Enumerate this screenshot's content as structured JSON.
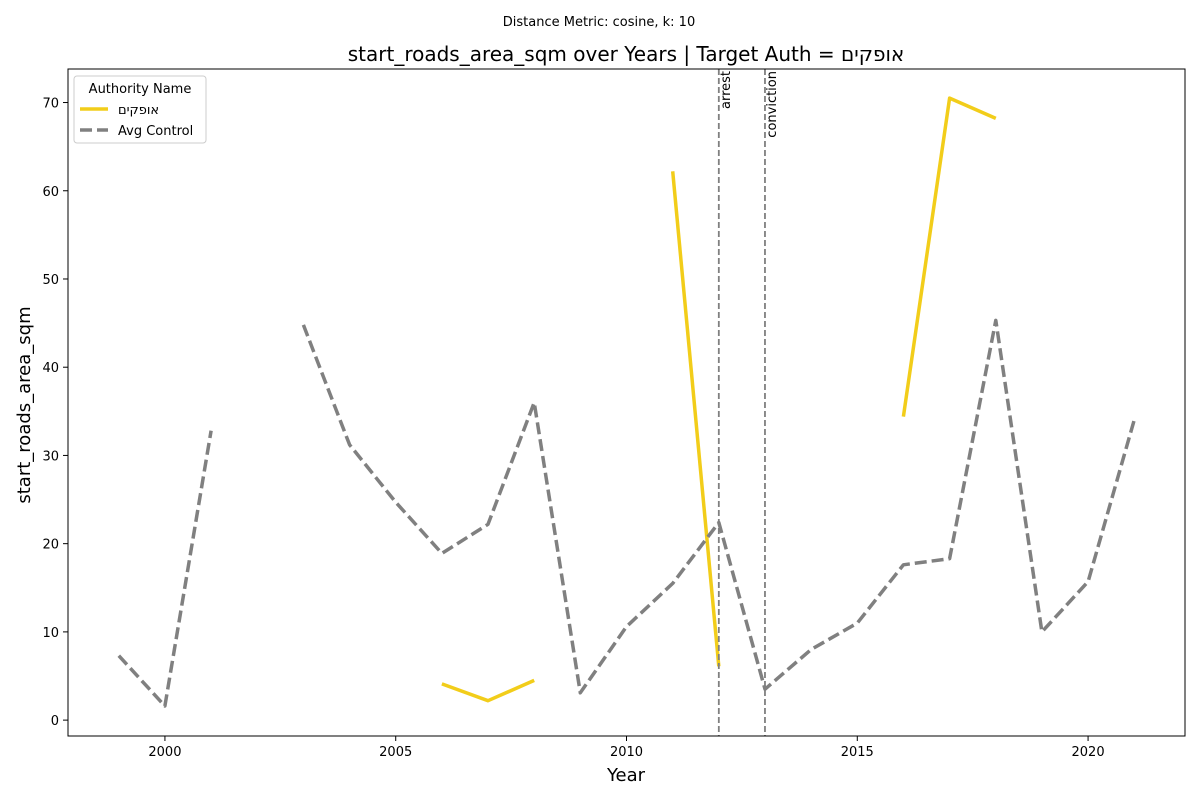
{
  "chart_data": {
    "type": "line",
    "suptitle": "Distance Metric: cosine, k: 10",
    "title": "start_roads_area_sqm over Years | Target Auth = אופקים",
    "xlabel": "Year",
    "ylabel": "start_roads_area_sqm",
    "xlim": [
      1997.9,
      2022.1
    ],
    "ylim": [
      -1.8,
      73.8
    ],
    "xticks": [
      2000,
      2005,
      2010,
      2015,
      2020
    ],
    "yticks": [
      0,
      10,
      20,
      30,
      40,
      50,
      60,
      70
    ],
    "grid": false,
    "legend": {
      "title": "Authority Name",
      "placement": "upper-left"
    },
    "series": [
      {
        "name": "אופקים",
        "color": "#f2cd1a",
        "style": "solid",
        "x": [
          1999,
          2000,
          2001,
          2002,
          2003,
          2004,
          2005,
          2006,
          2007,
          2008,
          2009,
          2010,
          2011,
          2012,
          2013,
          2014,
          2015,
          2016,
          2017,
          2018,
          2019,
          2020,
          2021
        ],
        "values": [
          null,
          null,
          null,
          null,
          null,
          null,
          null,
          4.1,
          2.2,
          4.5,
          null,
          null,
          62.2,
          6.1,
          null,
          null,
          null,
          34.4,
          70.5,
          68.2,
          null,
          null,
          null
        ]
      },
      {
        "name": "Avg Control",
        "color": "#808080",
        "style": "dashed",
        "x": [
          1999,
          2000,
          2001,
          2002,
          2003,
          2004,
          2005,
          2006,
          2007,
          2008,
          2009,
          2010,
          2011,
          2012,
          2013,
          2014,
          2015,
          2016,
          2017,
          2018,
          2019,
          2020,
          2021
        ],
        "values": [
          7.3,
          1.6,
          32.8,
          null,
          44.8,
          31.2,
          24.7,
          18.9,
          22.2,
          36.0,
          3.1,
          10.6,
          15.5,
          22.4,
          3.5,
          8.0,
          11.0,
          17.6,
          18.3,
          45.3,
          10.0,
          15.7,
          34.0
        ]
      }
    ],
    "annotations": [
      {
        "x": 2012.0,
        "label": "arrest",
        "color": "#808080",
        "style": "dashed"
      },
      {
        "x": 2013.0,
        "label": "conviction",
        "color": "#808080",
        "style": "dashed"
      }
    ]
  }
}
